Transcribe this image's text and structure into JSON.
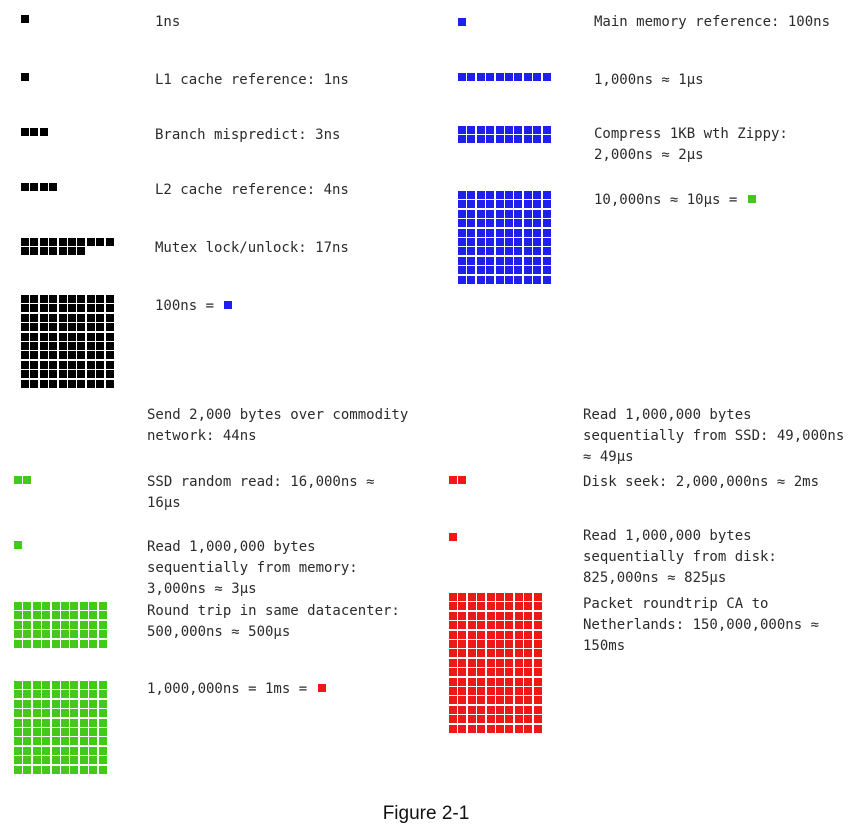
{
  "colors": {
    "ns": "#000000",
    "hundred_ns": "#1f1ff0",
    "ten_us": "#44c81a",
    "one_ms": "#ee1818"
  },
  "items": [
    {
      "label": "1ns",
      "cells": 1,
      "color": "ns"
    },
    {
      "label": "L1 cache reference: 1ns",
      "cells": 1,
      "color": "ns"
    },
    {
      "label": "Branch mispredict: 3ns",
      "cells": 3,
      "color": "ns"
    },
    {
      "label": "L2 cache reference: 4ns",
      "cells": 4,
      "color": "ns"
    },
    {
      "label": "Mutex lock/unlock: 17ns",
      "cells": 17,
      "color": "ns"
    },
    {
      "label": "100ns = ",
      "cells": 100,
      "color": "ns",
      "equals": "hundred_ns"
    },
    {
      "label": "Main memory reference: 100ns",
      "cells": 1,
      "color": "hundred_ns"
    },
    {
      "label": "1,000ns ≈ 1μs",
      "cells": 10,
      "color": "hundred_ns"
    },
    {
      "label": "Compress 1KB wth Zippy: 2,000ns ≈ 2μs",
      "cells": 20,
      "color": "hundred_ns"
    },
    {
      "label": "10,000ns ≈ 10μs = ",
      "cells": 100,
      "color": "hundred_ns",
      "equals": "ten_us"
    },
    {
      "label": "Send 2,000 bytes over commodity network: 44ns",
      "cells": 0,
      "color": "ten_us"
    },
    {
      "label": "SSD random read: 16,000ns ≈ 16μs",
      "cells": 2,
      "color": "ten_us"
    },
    {
      "label": "Read 1,000,000 bytes sequentially from memory: 3,000ns ≈ 3μs",
      "cells": 1,
      "color": "ten_us"
    },
    {
      "label": "Round trip in same datacenter: 500,000ns ≈ 500μs",
      "cells": 50,
      "color": "ten_us"
    },
    {
      "label": "1,000,000ns = 1ms = ",
      "cells": 100,
      "color": "ten_us",
      "equals": "one_ms"
    },
    {
      "label": "Read 1,000,000 bytes sequentially from SSD: 49,000ns ≈ 49μs",
      "cells": 0,
      "color": "one_ms"
    },
    {
      "label": "Disk seek: 2,000,000ns ≈ 2ms",
      "cells": 2,
      "color": "one_ms"
    },
    {
      "label": "Read 1,000,000 bytes sequentially from disk: 825,000ns ≈ 825μs",
      "cells": 1,
      "color": "one_ms"
    },
    {
      "label": "Packet roundtrip CA to Netherlands: 150,000,000ns ≈ 150ms",
      "cells": 150,
      "color": "one_ms"
    }
  ],
  "caption": "Figure 2-1"
}
